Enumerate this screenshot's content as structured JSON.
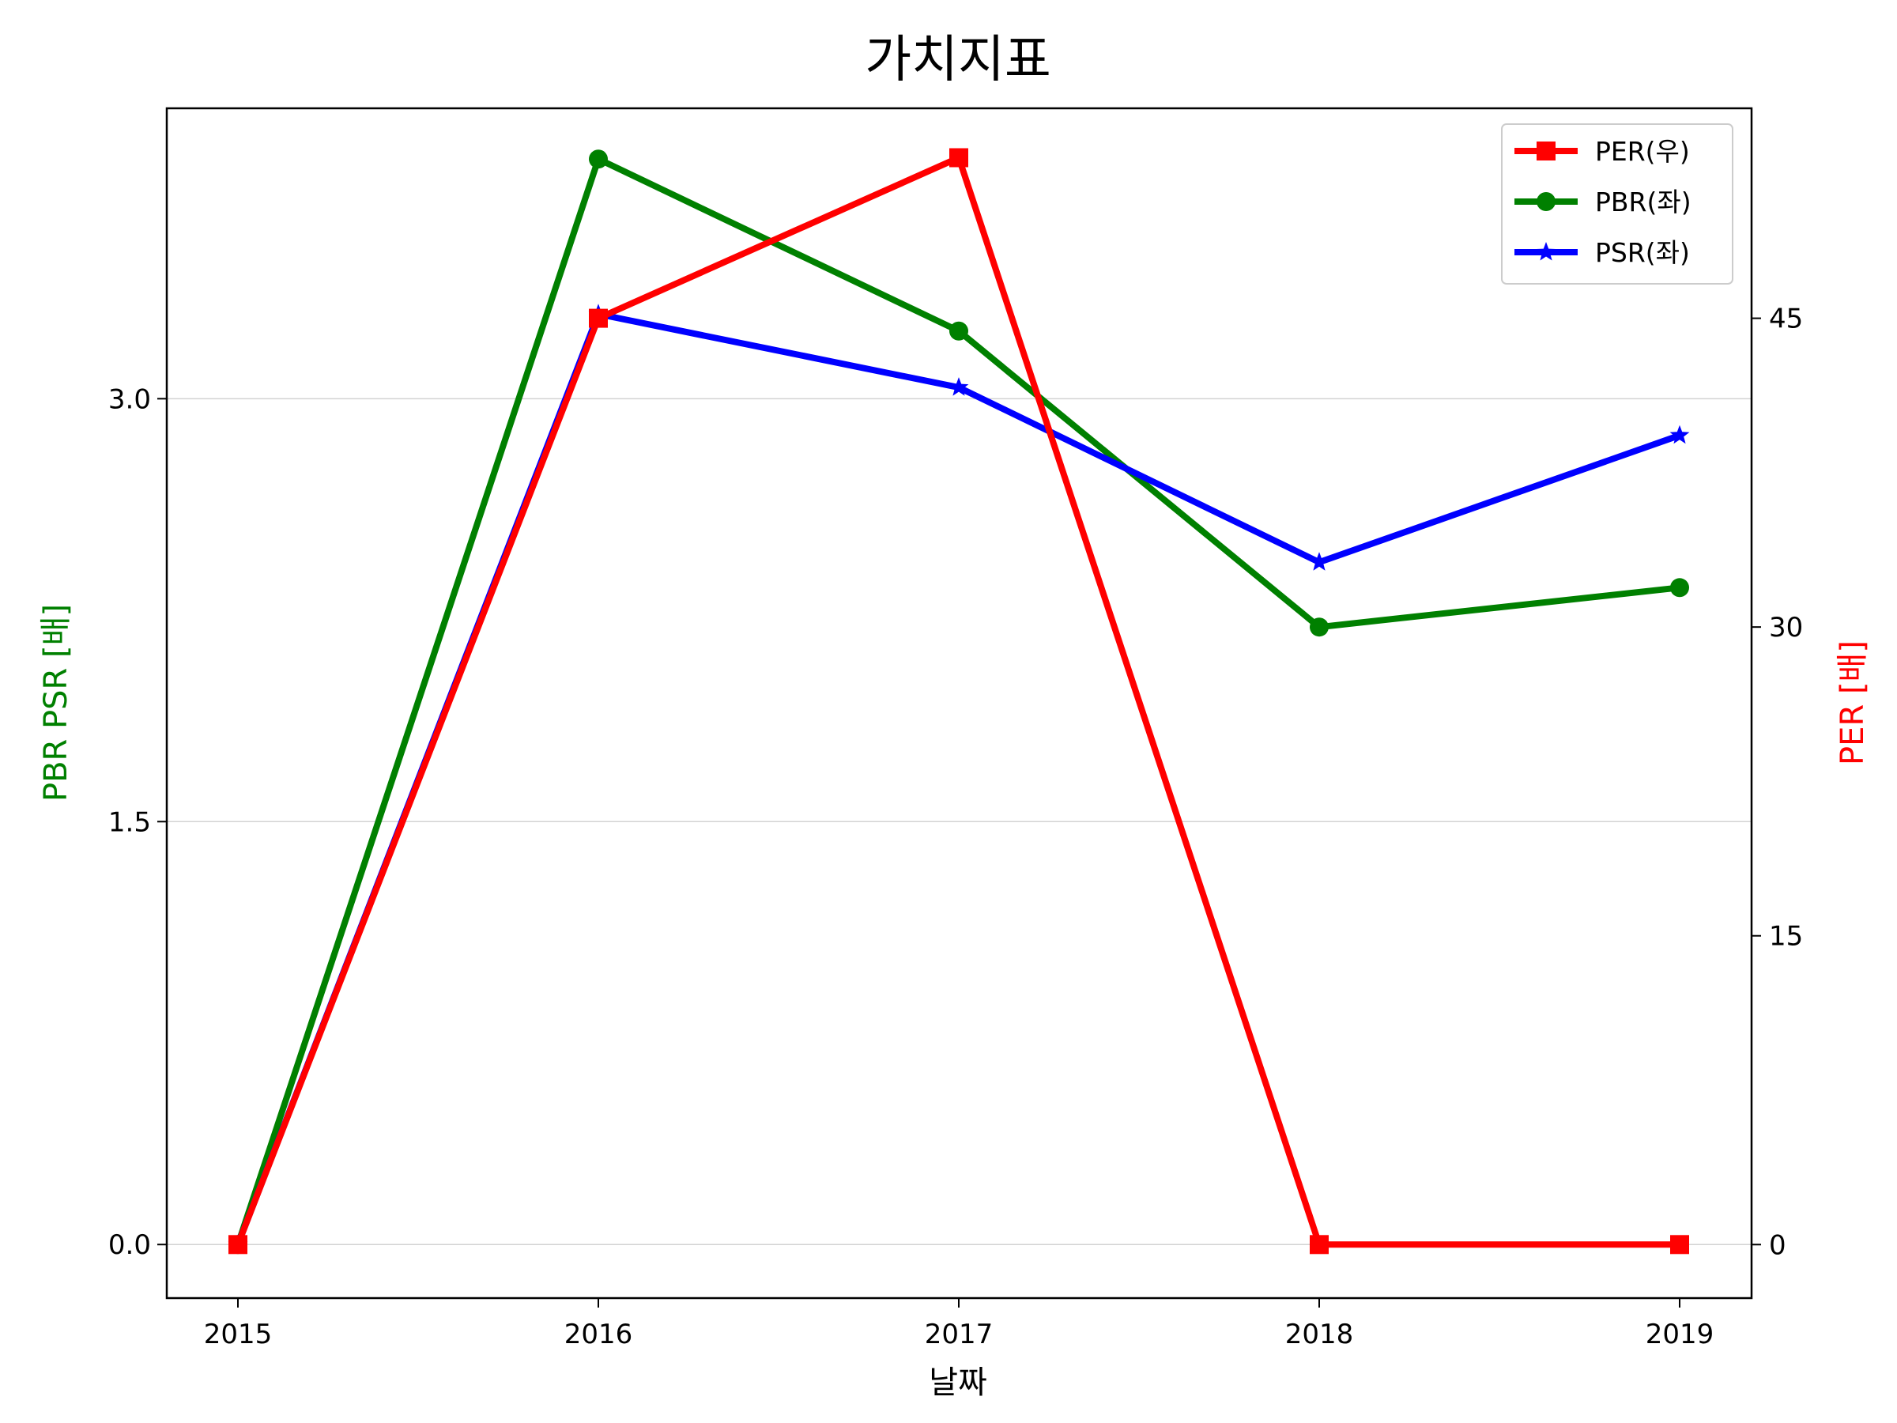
{
  "chart_data": {
    "type": "line",
    "title": "가치지표",
    "xlabel": "날짜",
    "ylabel_left": "PBR PSR [배]",
    "ylabel_right": "PER [배]",
    "ylabel_left_color": "#008000",
    "ylabel_right_color": "#ff0000",
    "categories": [
      "2015",
      "2016",
      "2017",
      "2018",
      "2019"
    ],
    "ylim_left": [
      -0.19,
      4.03
    ],
    "ylim_right": [
      -2.6,
      55.2
    ],
    "yticks_left": [
      "0.0",
      "1.5",
      "3.0"
    ],
    "yticks_left_values": [
      0,
      1.5,
      3.0
    ],
    "yticks_right": [
      "0",
      "15",
      "30",
      "45"
    ],
    "yticks_right_values": [
      0,
      15,
      30,
      45
    ],
    "grid": "horizontal",
    "legend_position": "top-right",
    "series": [
      {
        "name": "PER(우)",
        "axis": "right",
        "color": "#ff0000",
        "marker": "square",
        "values": [
          0,
          45.0,
          52.8,
          0,
          0
        ]
      },
      {
        "name": "PBR(좌)",
        "axis": "left",
        "color": "#008000",
        "marker": "circle",
        "values": [
          0,
          3.85,
          3.24,
          2.19,
          2.33
        ]
      },
      {
        "name": "PSR(좌)",
        "axis": "left",
        "color": "#0000ff",
        "marker": "star",
        "values": [
          0,
          3.3,
          3.04,
          2.42,
          2.87
        ]
      }
    ]
  }
}
